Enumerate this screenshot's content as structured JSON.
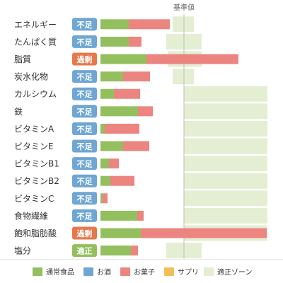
{
  "chart_data": {
    "type": "bar",
    "title": "",
    "reference_label": "基準値",
    "categories": [
      "エネルギー",
      "たんぱく質",
      "脂質",
      "炭水化物",
      "カルシウム",
      "鉄",
      "ビタミンA",
      "ビタミンE",
      "ビタミンB1",
      "ビタミンB2",
      "ビタミンC",
      "食物繊維",
      "飽和脂肪酸",
      "塩分"
    ],
    "status": [
      "不足",
      "不足",
      "過剰",
      "不足",
      "不足",
      "不足",
      "不足",
      "不足",
      "不足",
      "不足",
      "不足",
      "不足",
      "過剰",
      "適正"
    ],
    "series": [
      {
        "name": "通常食品",
        "values": [
          40,
          40,
          65,
          32,
          19,
          53,
          6,
          32,
          12,
          14,
          3,
          52,
          57,
          43
        ]
      },
      {
        "name": "お酒",
        "values": [
          0,
          0,
          0,
          0,
          0,
          0,
          0,
          0,
          0,
          0,
          0,
          0,
          0,
          0
        ]
      },
      {
        "name": "お菓子",
        "values": [
          58,
          18,
          130,
          38,
          37,
          21,
          49,
          37,
          14,
          34,
          7,
          9,
          178,
          10
        ]
      },
      {
        "name": "サプリ",
        "values": [
          0,
          0,
          0,
          0,
          0,
          0,
          0,
          0,
          0,
          0,
          0,
          0,
          0,
          0
        ]
      }
    ],
    "recommended_zone": [
      [
        102,
        132
      ],
      [
        93,
        143
      ],
      [
        95,
        143
      ],
      [
        102,
        132
      ],
      [
        118,
        236
      ],
      [
        118,
        236
      ],
      [
        118,
        236
      ],
      [
        118,
        236
      ],
      [
        118,
        236
      ],
      [
        118,
        236
      ],
      [
        118,
        236
      ],
      [
        118,
        236
      ],
      [
        118,
        236
      ],
      [
        93,
        143
      ]
    ],
    "reference_value": 118,
    "xlim": [
      0,
      236
    ]
  },
  "legend": [
    {
      "label": "通常食品",
      "color": "#93bf5e"
    },
    {
      "label": "お酒",
      "color": "#6fa6d3"
    },
    {
      "label": "お菓子",
      "color": "#ec8480"
    },
    {
      "label": "サプリ",
      "color": "#f1bf57"
    },
    {
      "label": "適正ゾーン",
      "color": "#e4eed2"
    }
  ],
  "colors": {
    "不足": "#6fa6d3",
    "過剰": "#e6784b",
    "適正": "#93bf5e",
    "zone": "#e4eed2",
    "reference_line": "#bfbfbf",
    "label_text": "#333333"
  }
}
